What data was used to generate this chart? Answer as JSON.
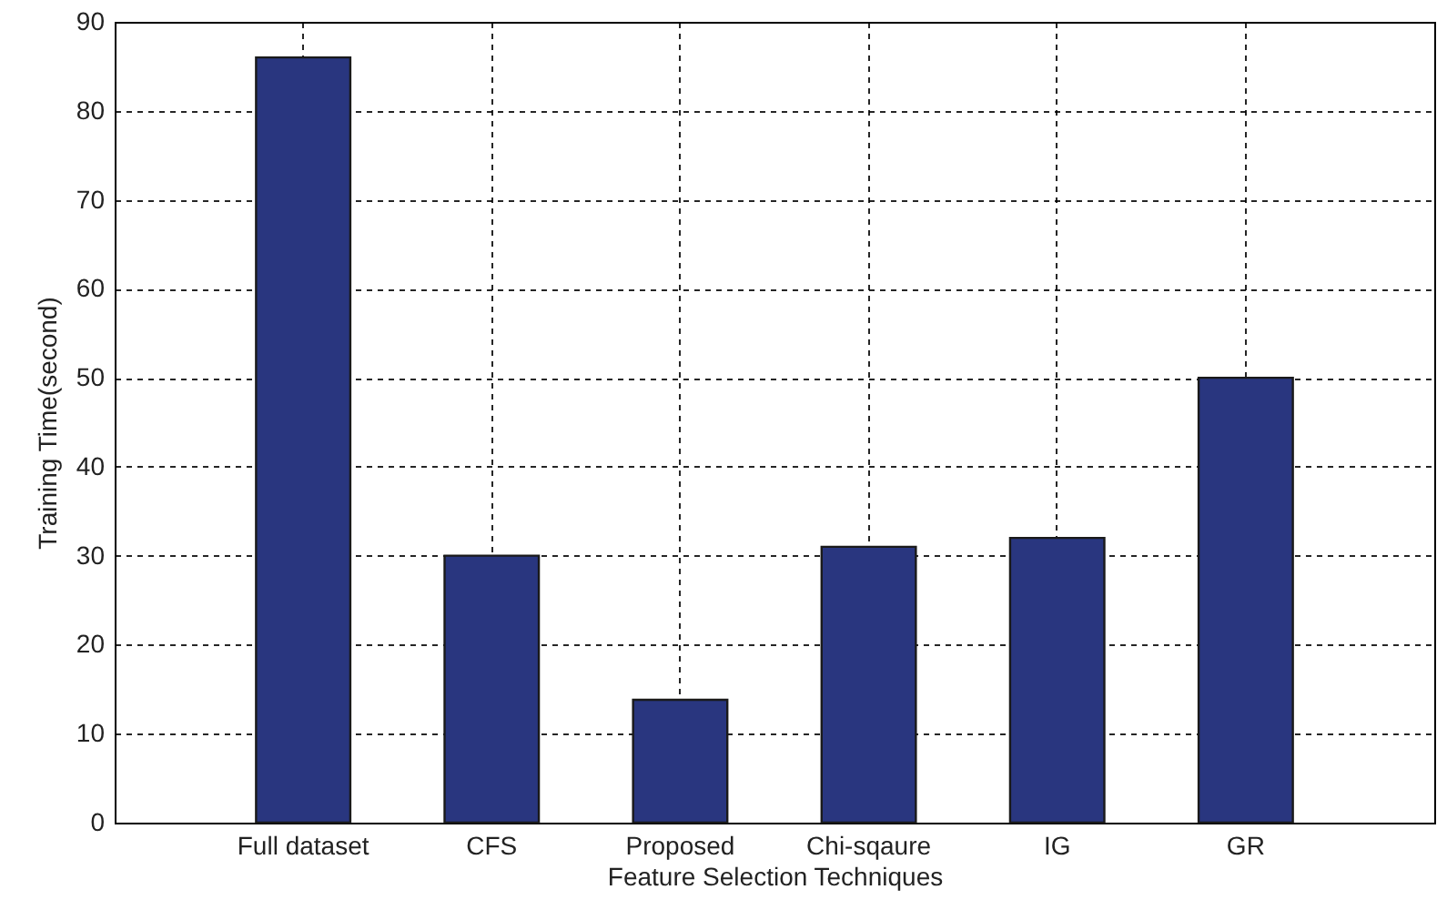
{
  "chart_data": {
    "type": "bar",
    "xlabel": "Feature Selection Techniques",
    "ylabel": "Training Time(second)",
    "categories": [
      "Full dataset",
      "CFS",
      "Proposed",
      "Chi-sqaure",
      "IG",
      "GR"
    ],
    "values": [
      86,
      30,
      13.8,
      31,
      32,
      50
    ],
    "color": "#29367f",
    "ylim": [
      0,
      90
    ],
    "yticks": [
      0,
      10,
      20,
      30,
      40,
      50,
      60,
      70,
      80,
      90
    ],
    "grid": true
  }
}
